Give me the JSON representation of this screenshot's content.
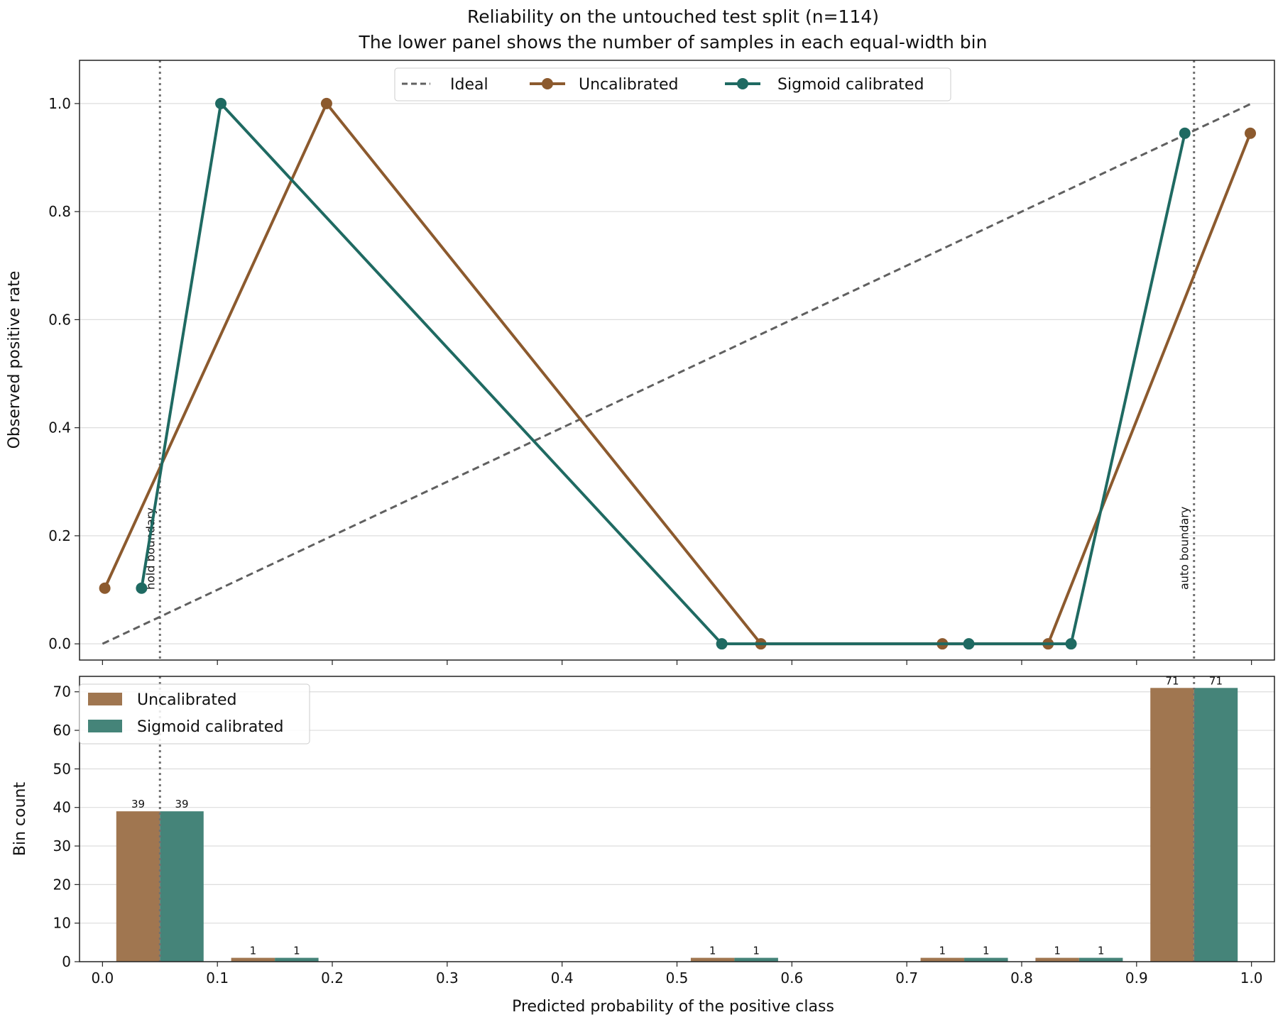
{
  "chart_data": {
    "title": "Reliability on the untouched test split (n=114)",
    "subtitle": "The lower panel shows the number of samples in each equal-width bin",
    "xlabel": "Predicted probability of the positive class",
    "colors": {
      "ideal": "#606060",
      "uncalibrated": "#8c5a2e",
      "sigmoid": "#1f6a62",
      "uncalibrated_bar": "#a07650",
      "sigmoid_bar": "#458479",
      "boundary": "#707070",
      "grid": "#dddddd"
    },
    "panels": [
      {
        "type": "line",
        "ylabel": "Observed positive rate",
        "xlim": [
          -0.02,
          1.02
        ],
        "ylim": [
          -0.03,
          1.08
        ],
        "yticks": [
          "0.0",
          "0.2",
          "0.4",
          "0.6",
          "0.8",
          "1.0"
        ],
        "grid": "horizontal",
        "legend": "top-center",
        "series": [
          {
            "name": "Ideal",
            "style": "dashed",
            "x": [
              0,
              1
            ],
            "y": [
              0,
              1
            ]
          },
          {
            "name": "Uncalibrated",
            "style": "solid-markers",
            "x": [
              0.002,
              0.195,
              0.573,
              0.731,
              0.823,
              0.999
            ],
            "y": [
              0.103,
              1.0,
              0.0,
              0.0,
              0.0,
              0.945
            ]
          },
          {
            "name": "Sigmoid calibrated",
            "style": "solid-markers",
            "x": [
              0.034,
              0.103,
              0.539,
              0.754,
              0.843,
              0.942
            ],
            "y": [
              0.103,
              1.0,
              0.0,
              0.0,
              0.0,
              0.945
            ]
          }
        ],
        "vlines": [
          {
            "x": 0.05,
            "label": "hold boundary"
          },
          {
            "x": 0.95,
            "label": "auto boundary"
          }
        ]
      },
      {
        "type": "bar",
        "ylabel": "Bin count",
        "xlim": [
          -0.02,
          1.02
        ],
        "ylim": [
          0,
          74
        ],
        "yticks": [
          "0",
          "10",
          "20",
          "30",
          "40",
          "50",
          "60",
          "70"
        ],
        "xticks": [
          "0.0",
          "0.1",
          "0.2",
          "0.3",
          "0.4",
          "0.5",
          "0.6",
          "0.7",
          "0.8",
          "0.9",
          "1.0"
        ],
        "grid": "horizontal",
        "legend": "top-left",
        "bins": [
          0.05,
          0.15,
          0.55,
          0.75,
          0.85,
          0.95
        ],
        "bar_width": 0.038,
        "series": [
          {
            "name": "Uncalibrated",
            "values": [
              39,
              1,
              1,
              1,
              1,
              71
            ],
            "labels": [
              "39",
              "1",
              "1",
              "1",
              "1",
              "71"
            ]
          },
          {
            "name": "Sigmoid calibrated",
            "values": [
              39,
              1,
              1,
              1,
              1,
              71
            ],
            "labels": [
              "39",
              "1",
              "1",
              "1",
              "1",
              "71"
            ]
          }
        ],
        "vlines": [
          {
            "x": 0.05
          },
          {
            "x": 0.95
          }
        ]
      }
    ]
  }
}
